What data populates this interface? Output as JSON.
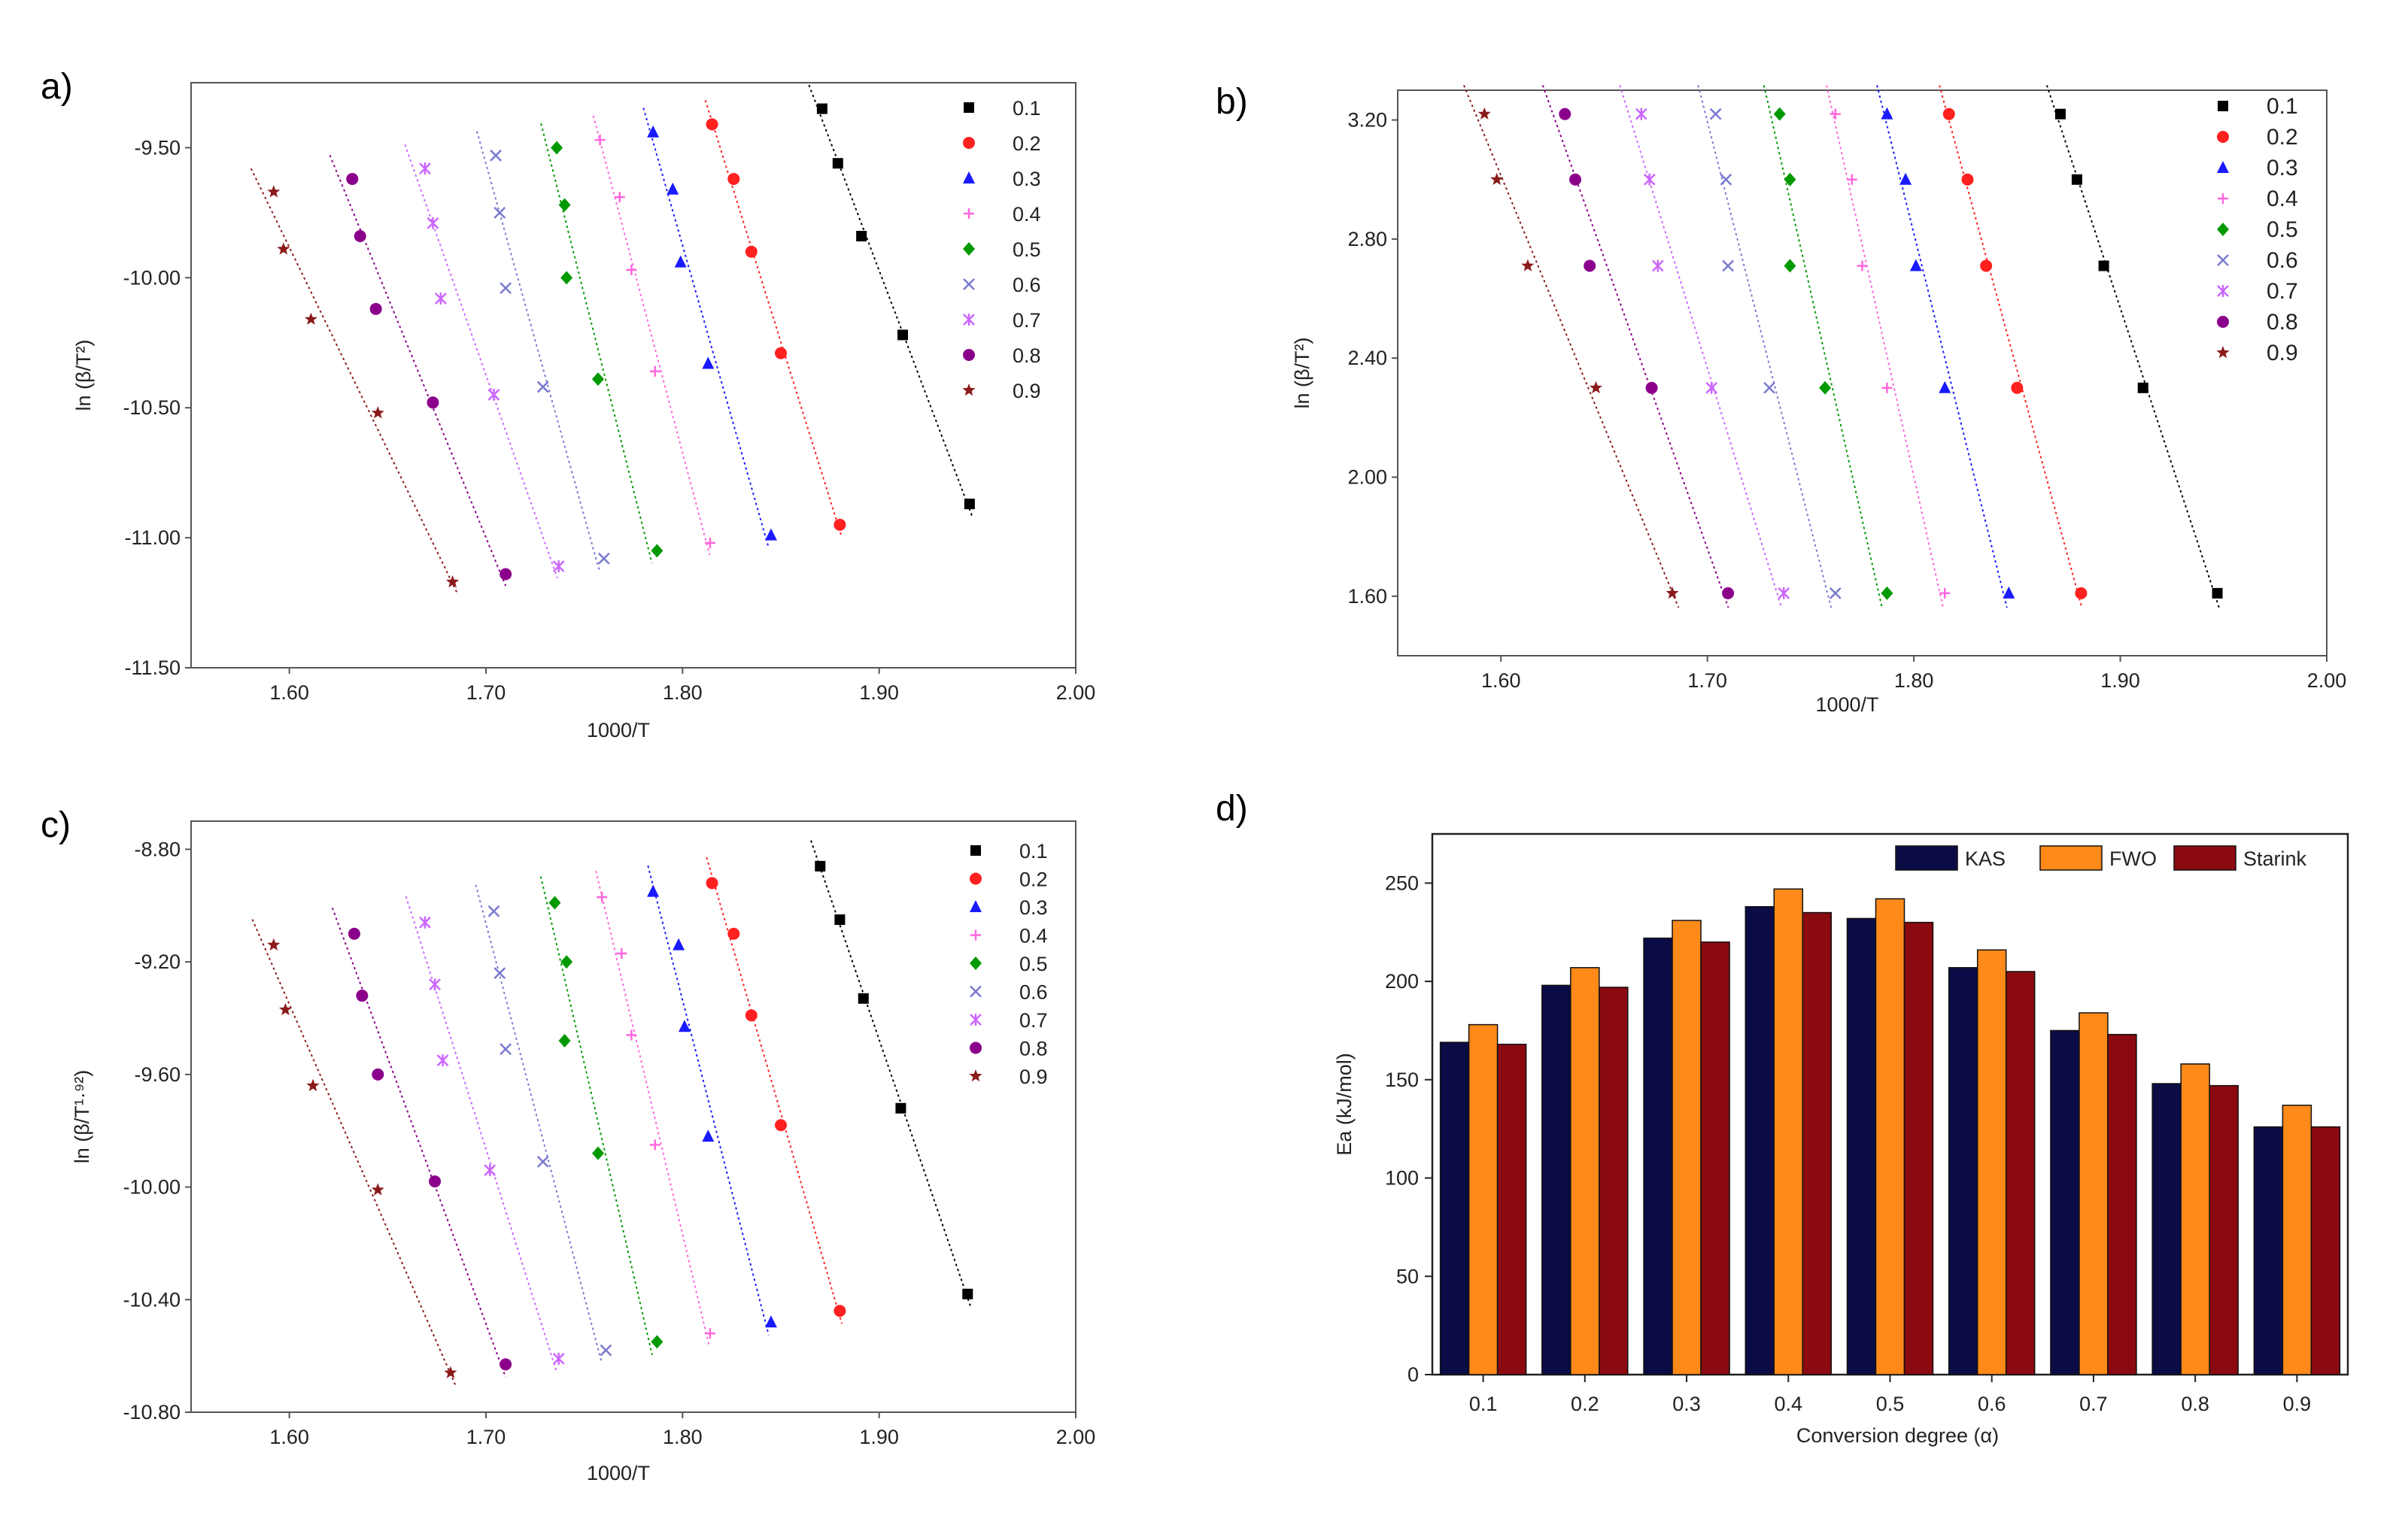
{
  "panels": [
    "a)",
    "b)",
    "c)",
    "d)"
  ],
  "colors": {
    "0.1": "#000000",
    "0.2": "#ff2020",
    "0.3": "#1a1aff",
    "0.4": "#ff66dd",
    "0.5": "#009900",
    "0.6": "#7a7ad0",
    "0.7": "#cc66ff",
    "0.8": "#8b008b",
    "0.9": "#8b1a1a"
  },
  "chart_data": [
    {
      "type": "scatter",
      "panel": "a)",
      "xlabel": "1000/T",
      "ylabel": "ln (β/T²)",
      "xlim": [
        1.55,
        2.0
      ],
      "ylim": [
        -11.5,
        -9.25
      ],
      "xticks": [
        "1.60",
        "1.70",
        "1.80",
        "1.90",
        "2.00"
      ],
      "yticks": [
        "-9.50",
        "-10.00",
        "-10.50",
        "-11.00",
        "-11.50"
      ],
      "legend_position": "top-right",
      "series": [
        {
          "name": "0.1",
          "marker": "square",
          "x": [
            1.871,
            1.879,
            1.891,
            1.912,
            1.946
          ],
          "y": [
            -9.35,
            -9.56,
            -9.84,
            -10.22,
            -10.87
          ]
        },
        {
          "name": "0.2",
          "marker": "circle",
          "x": [
            1.815,
            1.826,
            1.835,
            1.85,
            1.88
          ],
          "y": [
            -9.41,
            -9.62,
            -9.9,
            -10.29,
            -10.95
          ]
        },
        {
          "name": "0.3",
          "marker": "triangle",
          "x": [
            1.785,
            1.795,
            1.799,
            1.813,
            1.845
          ],
          "y": [
            -9.44,
            -9.66,
            -9.94,
            -10.33,
            -10.99
          ]
        },
        {
          "name": "0.4",
          "marker": "plus",
          "x": [
            1.758,
            1.768,
            1.774,
            1.786,
            1.814
          ],
          "y": [
            -9.47,
            -9.69,
            -9.97,
            -10.36,
            -11.02
          ]
        },
        {
          "name": "0.5",
          "marker": "diamond",
          "x": [
            1.736,
            1.74,
            1.741,
            1.757,
            1.787
          ],
          "y": [
            -9.5,
            -9.72,
            -10.0,
            -10.39,
            -11.05
          ]
        },
        {
          "name": "0.6",
          "marker": "x",
          "x": [
            1.705,
            1.707,
            1.71,
            1.729,
            1.76
          ],
          "y": [
            -9.53,
            -9.75,
            -10.04,
            -10.42,
            -11.08
          ]
        },
        {
          "name": "0.7",
          "marker": "asterisk",
          "x": [
            1.669,
            1.673,
            1.677,
            1.704,
            1.737
          ],
          "y": [
            -9.58,
            -9.79,
            -10.08,
            -10.45,
            -11.11
          ]
        },
        {
          "name": "0.8",
          "marker": "circle",
          "x": [
            1.632,
            1.636,
            1.644,
            1.673,
            1.71
          ],
          "y": [
            -9.62,
            -9.84,
            -10.12,
            -10.48,
            -11.14
          ]
        },
        {
          "name": "0.9",
          "marker": "star",
          "x": [
            1.592,
            1.597,
            1.611,
            1.645,
            1.683
          ],
          "y": [
            -9.67,
            -9.89,
            -10.16,
            -10.52,
            -11.17
          ]
        }
      ]
    },
    {
      "type": "scatter",
      "panel": "b)",
      "xlabel": "1000/T",
      "ylabel": "ln (β/T²)",
      "xlim": [
        1.55,
        2.0
      ],
      "ylim": [
        1.4,
        3.3
      ],
      "xticks": [
        "1.60",
        "1.70",
        "1.80",
        "1.90",
        "2.00"
      ],
      "yticks": [
        "3.20",
        "2.80",
        "2.40",
        "2.00",
        "1.60"
      ],
      "legend_position": "top-right",
      "series": [
        {
          "name": "0.1",
          "marker": "square",
          "x": [
            1.871,
            1.879,
            1.892,
            1.911,
            1.947
          ],
          "y": [
            3.22,
            3.0,
            2.71,
            2.3,
            1.61
          ]
        },
        {
          "name": "0.2",
          "marker": "circle",
          "x": [
            1.817,
            1.826,
            1.835,
            1.85,
            1.881
          ],
          "y": [
            3.22,
            3.0,
            2.71,
            2.3,
            1.61
          ]
        },
        {
          "name": "0.3",
          "marker": "triangle",
          "x": [
            1.787,
            1.796,
            1.801,
            1.815,
            1.846
          ],
          "y": [
            3.22,
            3.0,
            2.71,
            2.3,
            1.61
          ]
        },
        {
          "name": "0.4",
          "marker": "plus",
          "x": [
            1.762,
            1.77,
            1.775,
            1.787,
            1.815
          ],
          "y": [
            3.22,
            3.0,
            2.71,
            2.3,
            1.61
          ]
        },
        {
          "name": "0.5",
          "marker": "diamond",
          "x": [
            1.735,
            1.74,
            1.74,
            1.757,
            1.787
          ],
          "y": [
            3.22,
            3.0,
            2.71,
            2.3,
            1.61
          ]
        },
        {
          "name": "0.6",
          "marker": "x",
          "x": [
            1.704,
            1.709,
            1.71,
            1.73,
            1.762
          ],
          "y": [
            3.22,
            3.0,
            2.71,
            2.3,
            1.61
          ]
        },
        {
          "name": "0.7",
          "marker": "asterisk",
          "x": [
            1.668,
            1.672,
            1.676,
            1.702,
            1.737
          ],
          "y": [
            3.22,
            3.0,
            2.71,
            2.3,
            1.61
          ]
        },
        {
          "name": "0.8",
          "marker": "circle",
          "x": [
            1.631,
            1.636,
            1.643,
            1.673,
            1.71
          ],
          "y": [
            3.22,
            3.0,
            2.71,
            2.3,
            1.61
          ]
        },
        {
          "name": "0.9",
          "marker": "star",
          "x": [
            1.592,
            1.598,
            1.613,
            1.646,
            1.683
          ],
          "y": [
            3.22,
            3.0,
            2.71,
            2.3,
            1.61
          ]
        }
      ]
    },
    {
      "type": "scatter",
      "panel": "c)",
      "xlabel": "1000/T",
      "ylabel": "ln (β/T¹·⁹²)",
      "xlim": [
        1.55,
        2.0
      ],
      "ylim": [
        -10.8,
        -8.7
      ],
      "xticks": [
        "1.60",
        "1.70",
        "1.80",
        "1.90",
        "2.00"
      ],
      "yticks": [
        "-8.80",
        "-9.20",
        "-9.60",
        "-10.00",
        "-10.40",
        "-10.80"
      ],
      "legend_position": "top-right",
      "series": [
        {
          "name": "0.1",
          "marker": "square",
          "x": [
            1.87,
            1.88,
            1.892,
            1.911,
            1.945
          ],
          "y": [
            -8.86,
            -9.05,
            -9.33,
            -9.72,
            -10.38
          ]
        },
        {
          "name": "0.2",
          "marker": "circle",
          "x": [
            1.815,
            1.826,
            1.835,
            1.85,
            1.88
          ],
          "y": [
            -8.92,
            -9.1,
            -9.39,
            -9.78,
            -10.44
          ]
        },
        {
          "name": "0.3",
          "marker": "triangle",
          "x": [
            1.785,
            1.798,
            1.801,
            1.813,
            1.845
          ],
          "y": [
            -8.95,
            -9.14,
            -9.43,
            -9.82,
            -10.48
          ]
        },
        {
          "name": "0.4",
          "marker": "plus",
          "x": [
            1.759,
            1.769,
            1.774,
            1.786,
            1.814
          ],
          "y": [
            -8.97,
            -9.17,
            -9.46,
            -9.85,
            -10.52
          ]
        },
        {
          "name": "0.5",
          "marker": "diamond",
          "x": [
            1.735,
            1.741,
            1.74,
            1.757,
            1.787
          ],
          "y": [
            -8.99,
            -9.2,
            -9.48,
            -9.88,
            -10.55
          ]
        },
        {
          "name": "0.6",
          "marker": "x",
          "x": [
            1.704,
            1.707,
            1.71,
            1.729,
            1.761
          ],
          "y": [
            -9.02,
            -9.24,
            -9.51,
            -9.91,
            -10.58
          ]
        },
        {
          "name": "0.7",
          "marker": "asterisk",
          "x": [
            1.669,
            1.674,
            1.678,
            1.702,
            1.737
          ],
          "y": [
            -9.06,
            -9.28,
            -9.55,
            -9.94,
            -10.61
          ]
        },
        {
          "name": "0.8",
          "marker": "circle",
          "x": [
            1.633,
            1.637,
            1.645,
            1.674,
            1.71
          ],
          "y": [
            -9.1,
            -9.32,
            -9.6,
            -9.98,
            -10.63
          ]
        },
        {
          "name": "0.9",
          "marker": "star",
          "x": [
            1.592,
            1.598,
            1.612,
            1.645,
            1.682
          ],
          "y": [
            -9.14,
            -9.37,
            -9.64,
            -10.01,
            -10.66
          ]
        }
      ]
    },
    {
      "type": "bar",
      "panel": "d)",
      "xlabel": "Conversion degree (α)",
      "ylabel": "Ea (kJ/mol)",
      "ylim": [
        0,
        275
      ],
      "yticks": [
        "0",
        "50",
        "100",
        "150",
        "200",
        "250"
      ],
      "categories": [
        "0.1",
        "0.2",
        "0.3",
        "0.4",
        "0.5",
        "0.6",
        "0.7",
        "0.8",
        "0.9"
      ],
      "legend_position": "top-right",
      "series": [
        {
          "name": "KAS",
          "color": "#0b0c45",
          "values": [
            169,
            198,
            222,
            238,
            232,
            207,
            175,
            148,
            126
          ]
        },
        {
          "name": "FWO",
          "color": "#ff8a1a",
          "values": [
            178,
            207,
            231,
            247,
            242,
            216,
            184,
            158,
            137
          ]
        },
        {
          "name": "Starink",
          "color": "#8b0a10",
          "values": [
            168,
            197,
            220,
            235,
            230,
            205,
            173,
            147,
            126
          ]
        }
      ]
    }
  ]
}
